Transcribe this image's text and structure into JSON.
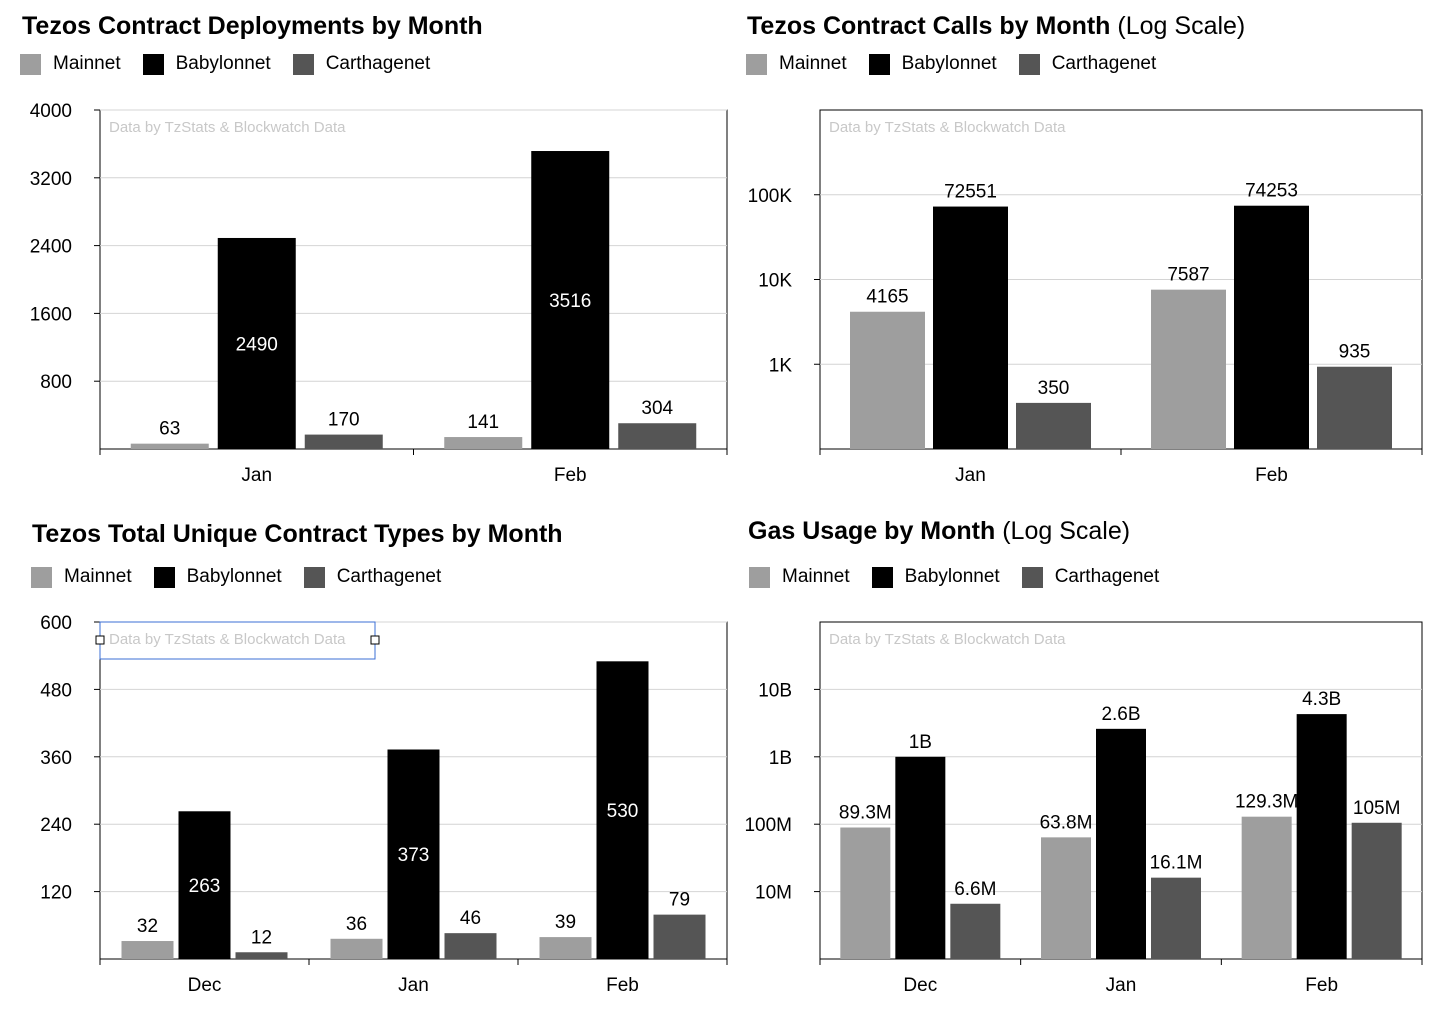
{
  "colors": {
    "Mainnet": "#9e9e9e",
    "Babylonnet": "#000000",
    "Carthagenet": "#555555"
  },
  "watermark": "Data by TzStats & Blockwatch Data",
  "chart_data": [
    {
      "id": "deployments",
      "type": "bar",
      "title": "Tezos Contract Deployments by Month",
      "subtitle": "",
      "legend": [
        "Mainnet",
        "Babylonnet",
        "Carthagenet"
      ],
      "categories": [
        "Jan",
        "Feb"
      ],
      "series": [
        {
          "name": "Mainnet",
          "values": [
            63,
            141
          ]
        },
        {
          "name": "Babylonnet",
          "values": [
            2490,
            3516
          ]
        },
        {
          "name": "Carthagenet",
          "values": [
            170,
            304
          ]
        }
      ],
      "scale": "linear",
      "ylim": [
        0,
        4000
      ],
      "yticks": [
        800,
        1600,
        2400,
        3200,
        4000
      ],
      "ytick_labels": [
        "800",
        "1600",
        "2400",
        "3200",
        "4000"
      ],
      "grid": true,
      "legend_position": "top-left"
    },
    {
      "id": "calls",
      "type": "bar",
      "title": "Tezos Contract Calls by Month",
      "subtitle": "(Log Scale)",
      "legend": [
        "Mainnet",
        "Babylonnet",
        "Carthagenet"
      ],
      "categories": [
        "Jan",
        "Feb"
      ],
      "series": [
        {
          "name": "Mainnet",
          "values": [
            4165,
            7587
          ]
        },
        {
          "name": "Babylonnet",
          "values": [
            72551,
            74253
          ]
        },
        {
          "name": "Carthagenet",
          "values": [
            350,
            935
          ]
        }
      ],
      "scale": "log",
      "ylim": [
        100,
        1000000
      ],
      "yticks": [
        1000,
        10000,
        100000
      ],
      "ytick_labels": [
        "1K",
        "10K",
        "100K"
      ],
      "grid": true,
      "legend_position": "top-left"
    },
    {
      "id": "types",
      "type": "bar",
      "title": "Tezos Total Unique Contract Types by Month",
      "subtitle": "",
      "legend": [
        "Mainnet",
        "Babylonnet",
        "Carthagenet"
      ],
      "categories": [
        "Dec",
        "Jan",
        "Feb"
      ],
      "series": [
        {
          "name": "Mainnet",
          "values": [
            32,
            36,
            39
          ]
        },
        {
          "name": "Babylonnet",
          "values": [
            263,
            373,
            530
          ]
        },
        {
          "name": "Carthagenet",
          "values": [
            12,
            46,
            79
          ]
        }
      ],
      "scale": "linear",
      "ylim": [
        0,
        600
      ],
      "yticks": [
        120,
        240,
        360,
        480,
        600
      ],
      "ytick_labels": [
        "120",
        "240",
        "360",
        "480",
        "600"
      ],
      "grid": true,
      "legend_position": "top-left"
    },
    {
      "id": "gas",
      "type": "bar",
      "title": "Gas Usage by Month",
      "subtitle": "(Log Scale)",
      "legend": [
        "Mainnet",
        "Babylonnet",
        "Carthagenet"
      ],
      "categories": [
        "Dec",
        "Jan",
        "Feb"
      ],
      "series": [
        {
          "name": "Mainnet",
          "values": [
            89300000,
            63800000,
            129300000
          ],
          "labels": [
            "89.3M",
            "63.8M",
            "129.3M"
          ]
        },
        {
          "name": "Babylonnet",
          "values": [
            1000000000,
            2600000000,
            4300000000
          ],
          "labels": [
            "1B",
            "2.6B",
            "4.3B"
          ]
        },
        {
          "name": "Carthagenet",
          "values": [
            6600000,
            16100000,
            105000000
          ],
          "labels": [
            "6.6M",
            "16.1M",
            "105M"
          ]
        }
      ],
      "scale": "log",
      "ylim": [
        1000000,
        100000000000
      ],
      "yticks": [
        10000000,
        100000000,
        1000000000,
        10000000000
      ],
      "ytick_labels": [
        "10M",
        "100M",
        "1B",
        "10B"
      ],
      "grid": true,
      "legend_position": "top-left"
    }
  ]
}
